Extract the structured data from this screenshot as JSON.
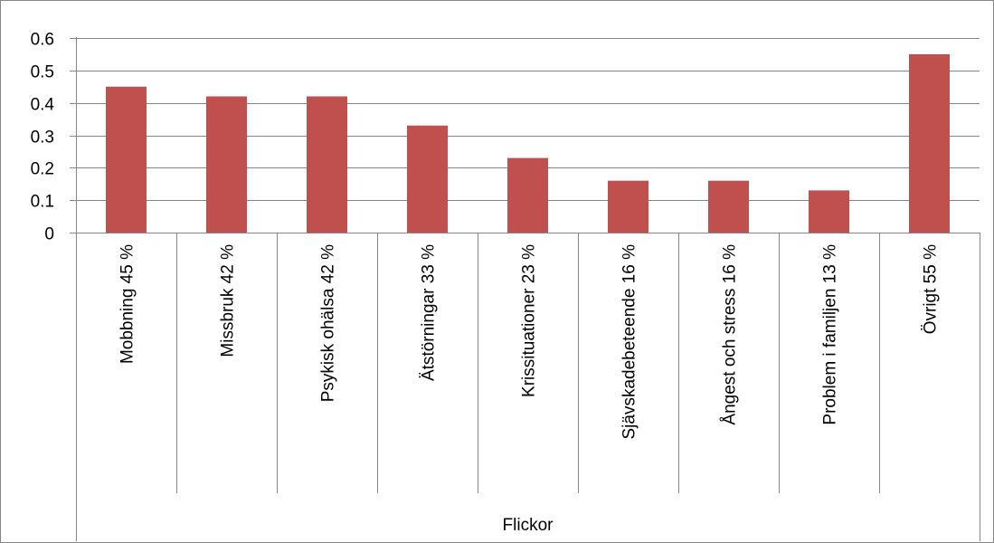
{
  "chart_data": {
    "type": "bar",
    "categories": [
      "Mobbning 45 %",
      "Missbruk 42 %",
      "Psykisk ohälsa 42 %",
      "Ätstörningar 33 %",
      "Krissituationer 23 %",
      "Sjävskadebeteende 16 %",
      "Ångest och stress 16 %",
      "Problem i familjen 13 %",
      "Övrigt 55 %"
    ],
    "values": [
      0.45,
      0.42,
      0.42,
      0.33,
      0.23,
      0.16,
      0.16,
      0.13,
      0.55
    ],
    "group_label": "Flickor",
    "yticks": [
      "0",
      "0.1",
      "0.2",
      "0.3",
      "0.4",
      "0.5",
      "0.6"
    ],
    "ylim": [
      0,
      0.6
    ],
    "grid": true,
    "legend": "none",
    "bar_color": "#c0504d",
    "grid_color": "#868686"
  }
}
